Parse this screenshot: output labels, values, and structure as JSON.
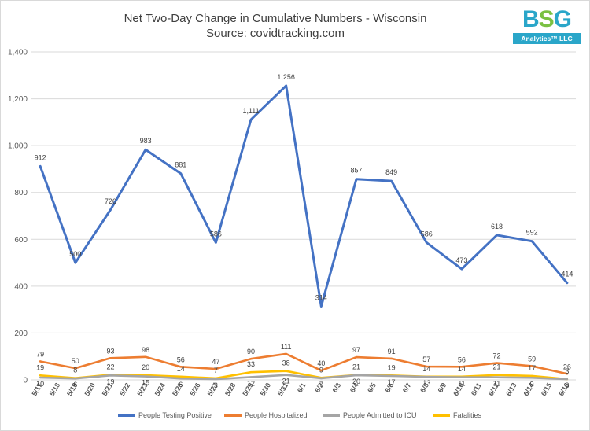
{
  "header": {
    "title": "Net Two-Day Change in Cumulative Numbers - Wisconsin",
    "subtitle": "Source: covidtracking.com"
  },
  "logo": {
    "letter1": "B",
    "letter2": "S",
    "letter3": "G",
    "tagline": "Analytics™ LLC"
  },
  "chart_data": {
    "type": "line",
    "title": "Net Two-Day Change in Cumulative Numbers - Wisconsin",
    "subtitle": "Source: covidtracking.com",
    "xlabel": "",
    "ylabel": "",
    "ylim": [
      0,
      1400
    ],
    "yticks": [
      0,
      200,
      400,
      600,
      800,
      1000,
      1200,
      1400
    ],
    "ytick_labels": [
      "0",
      "200",
      "400",
      "600",
      "800",
      "1,000",
      "1,200",
      "1,400"
    ],
    "grid": true,
    "legend_position": "bottom",
    "categories": [
      "5/17",
      "5/18",
      "5/19",
      "5/20",
      "5/21",
      "5/22",
      "5/23",
      "5/24",
      "5/25",
      "5/26",
      "5/27",
      "5/28",
      "5/29",
      "5/30",
      "5/31",
      "6/1",
      "6/2",
      "6/3",
      "6/4",
      "6/5",
      "6/6",
      "6/7",
      "6/8",
      "6/9",
      "6/10",
      "6/11",
      "6/12",
      "6/13",
      "6/14",
      "6/15",
      "6/16"
    ],
    "series": [
      {
        "name": "People Testing Positive",
        "color": "#4472c4",
        "x": [
          "5/17",
          "5/19",
          "5/21",
          "5/23",
          "5/25",
          "5/27",
          "5/29",
          "5/31",
          "6/2",
          "6/4",
          "6/6",
          "6/8",
          "6/10",
          "6/12",
          "6/14",
          "6/16"
        ],
        "values": [
          912,
          500,
          726,
          983,
          881,
          586,
          1111,
          1256,
          314,
          857,
          849,
          586,
          473,
          618,
          592,
          414
        ],
        "labels": [
          "912",
          "500",
          "726",
          "983",
          "881",
          "586",
          "1,111",
          "1,256",
          "314",
          "857",
          "849",
          "586",
          "473",
          "618",
          "592",
          "414"
        ]
      },
      {
        "name": "People Hospitalized",
        "color": "#ed7d31",
        "x": [
          "5/17",
          "5/19",
          "5/21",
          "5/23",
          "5/25",
          "5/27",
          "5/29",
          "5/31",
          "6/2",
          "6/4",
          "6/6",
          "6/8",
          "6/10",
          "6/12",
          "6/14",
          "6/16"
        ],
        "values": [
          79,
          50,
          93,
          98,
          56,
          47,
          90,
          111,
          40,
          97,
          91,
          57,
          56,
          72,
          59,
          26
        ],
        "labels": [
          "79",
          "50",
          "93",
          "98",
          "56",
          "47",
          "90",
          "111",
          "40",
          "97",
          "91",
          "57",
          "56",
          "72",
          "59",
          "26"
        ]
      },
      {
        "name": "People Admitted to ICU",
        "color": "#a5a5a5",
        "x": [
          "5/17",
          "5/19",
          "5/21",
          "5/23",
          "5/25",
          "5/27",
          "5/29",
          "5/31",
          "6/2",
          "6/4",
          "6/6",
          "6/8",
          "6/10",
          "6/12",
          "6/14",
          "6/16"
        ],
        "values": [
          10,
          6,
          19,
          15,
          6,
          3,
          12,
          21,
          7,
          20,
          17,
          13,
          11,
          11,
          9,
          3
        ],
        "labels": [
          "10",
          "6",
          "19",
          "15",
          "6",
          "3",
          "12",
          "21",
          "7",
          "20",
          "17",
          "13",
          "11",
          "11",
          "9",
          "3"
        ]
      },
      {
        "name": "Fatalities",
        "color": "#ffc000",
        "x": [
          "5/17",
          "5/19",
          "5/21",
          "5/23",
          "5/25",
          "5/27",
          "5/29",
          "5/31",
          "6/2",
          "6/4",
          "6/6",
          "6/8",
          "6/10",
          "6/12",
          "6/14",
          "6/16"
        ],
        "values": [
          19,
          8,
          22,
          20,
          14,
          7,
          33,
          38,
          9,
          21,
          19,
          14,
          14,
          21,
          17,
          3
        ],
        "labels": [
          "19",
          "8",
          "22",
          "20",
          "14",
          "7",
          "33",
          "38",
          "9",
          "21",
          "19",
          "14",
          "14",
          "21",
          "17",
          "3"
        ]
      }
    ]
  }
}
